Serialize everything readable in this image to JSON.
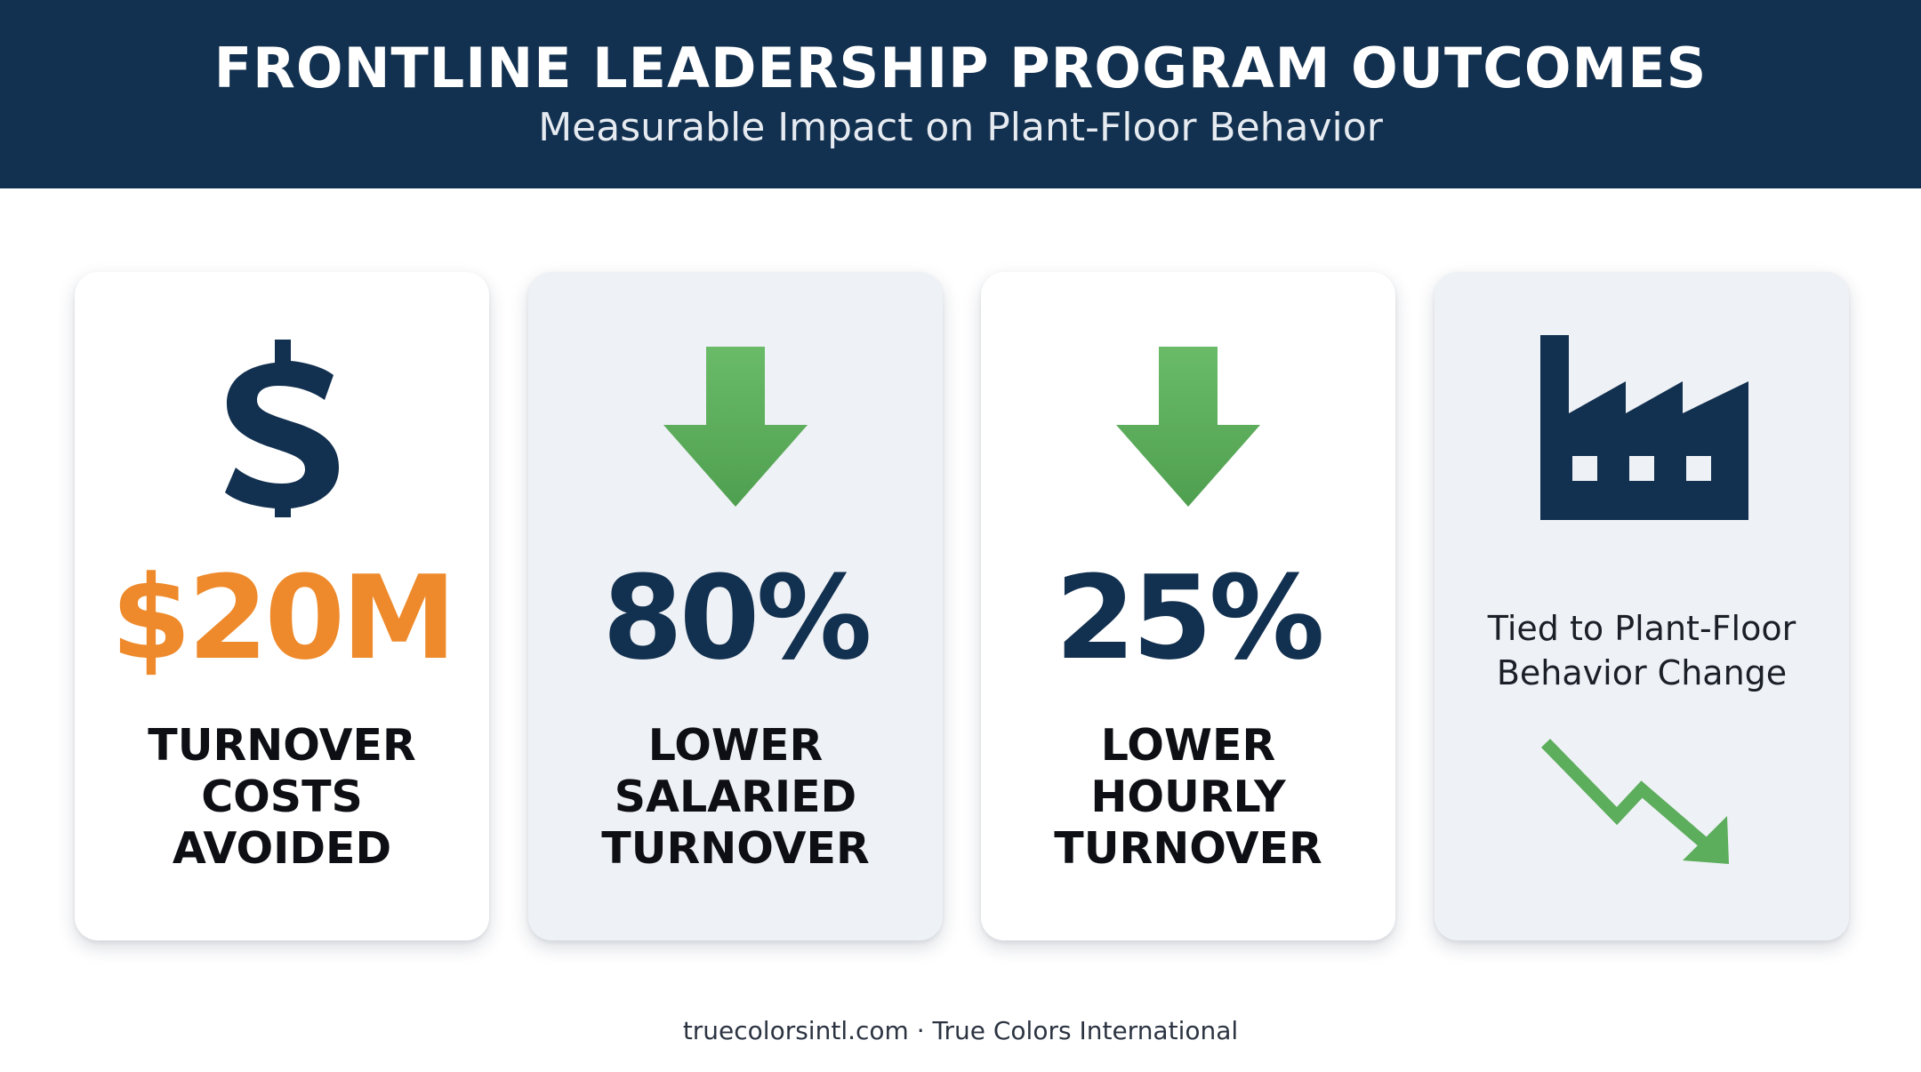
{
  "header": {
    "title": "FRONTLINE LEADERSHIP PROGRAM OUTCOMES",
    "subtitle": "Measurable Impact on Plant-Floor Behavior"
  },
  "cards": [
    {
      "icon": "dollar-sign-icon",
      "value": "$20M",
      "value_color": "#ee8a2b",
      "label_lines": [
        "TURNOVER",
        "COSTS",
        "AVOIDED"
      ]
    },
    {
      "icon": "down-arrow-icon",
      "value": "80%",
      "value_color": "#12304f",
      "label_lines": [
        "LOWER",
        "SALARIED",
        "TURNOVER"
      ]
    },
    {
      "icon": "down-arrow-icon",
      "value": "25%",
      "value_color": "#12304f",
      "label_lines": [
        "LOWER",
        "HOURLY",
        "TURNOVER"
      ]
    },
    {
      "icon": "factory-icon",
      "note_lines": [
        "Tied to Plant-Floor",
        "Behavior Change"
      ],
      "trend_icon": "downward-trend-icon"
    }
  ],
  "colors": {
    "navy": "#12304f",
    "orange": "#ee8a2b",
    "green": "#5cad5c"
  },
  "footer": {
    "text": "truecolorsintl.com · True Colors International"
  }
}
